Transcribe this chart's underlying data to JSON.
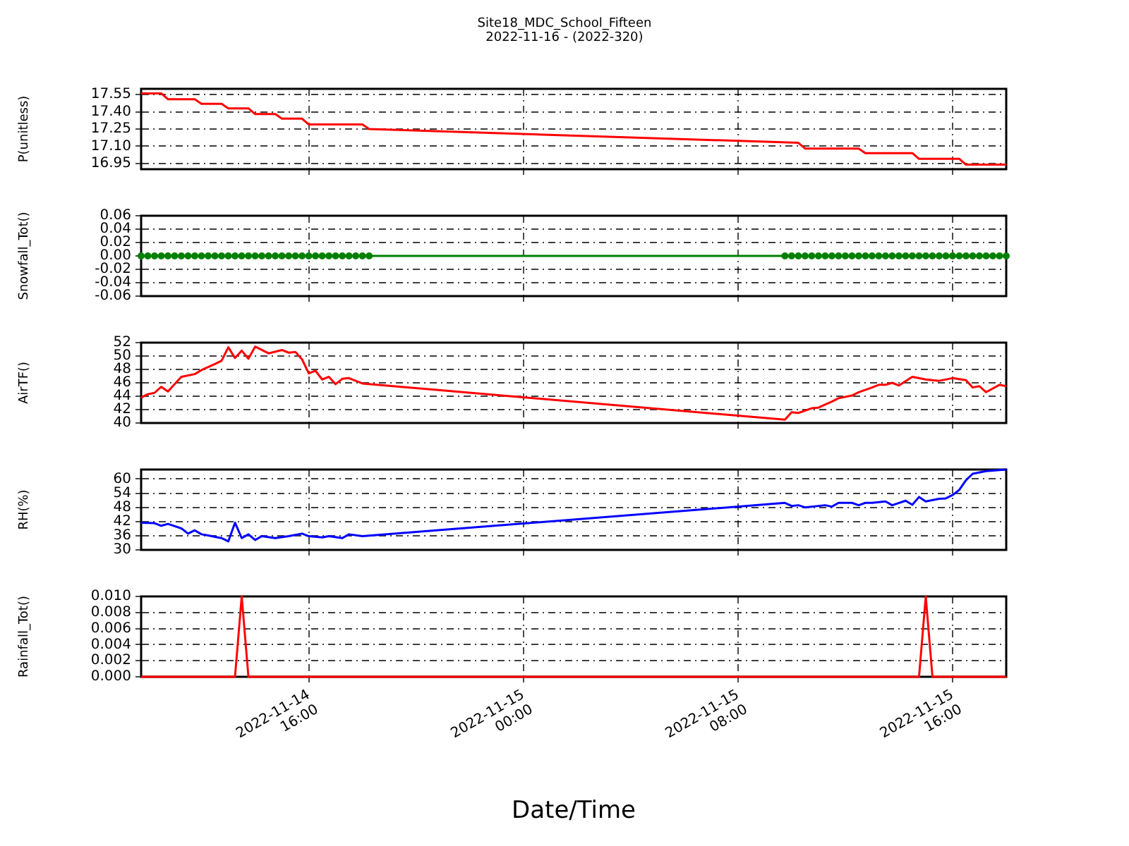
{
  "chart_data": [
    {
      "type": "line",
      "title": "Site18_MDC_School_Fifteen",
      "subtitle": "2022-11-16 - (2022-320)",
      "ylabel": "P(unitless)",
      "tick_labels": "y",
      "grid": true,
      "xlim": [
        "2022-11-14T09:45",
        "2022-11-15T18:00"
      ],
      "xticks": [
        {
          "value": "2022-11-14T16:00",
          "label": null
        },
        {
          "value": "2022-11-15T00:00",
          "label": null
        },
        {
          "value": "2022-11-15T08:00",
          "label": null
        },
        {
          "value": "2022-11-15T16:00",
          "label": null
        }
      ],
      "ylim": [
        16.9,
        17.6
      ],
      "yticks": [
        16.95,
        {
          "value": 17.1,
          "label": "17.10"
        },
        17.25,
        {
          "value": 17.4,
          "label": "17.40"
        },
        17.55
      ],
      "series": [
        {
          "color": "#ff0000",
          "x": [
            "2022-11-14T09:45",
            "2022-11-14T10:30",
            "2022-11-14T10:45",
            "2022-11-14T11:45",
            "2022-11-14T12:00",
            "2022-11-14T12:45",
            "2022-11-14T13:00",
            "2022-11-14T13:45",
            "2022-11-14T14:00",
            "2022-11-14T14:45",
            "2022-11-14T15:00",
            "2022-11-14T15:45",
            "2022-11-14T16:00",
            "2022-11-14T18:00",
            "2022-11-14T18:15",
            "2022-11-15T10:15",
            "2022-11-15T10:30",
            "2022-11-15T12:30",
            "2022-11-15T12:45",
            "2022-11-15T14:30",
            "2022-11-15T14:45",
            "2022-11-15T16:15",
            "2022-11-15T16:30",
            "2022-11-15T18:00"
          ],
          "values": [
            17.56,
            17.56,
            17.51,
            17.51,
            17.47,
            17.47,
            17.43,
            17.43,
            17.38,
            17.38,
            17.34,
            17.34,
            17.29,
            17.29,
            17.25,
            17.13,
            17.08,
            17.08,
            17.04,
            17.04,
            16.99,
            16.99,
            16.94,
            16.94
          ]
        }
      ]
    },
    {
      "type": "line",
      "ylabel": "Snowfall_Tot()",
      "tick_labels": "y",
      "grid": true,
      "marker": "circle",
      "xlim": [
        "2022-11-14T09:45",
        "2022-11-15T18:00"
      ],
      "xticks": [
        {
          "value": "2022-11-14T16:00",
          "label": null
        },
        {
          "value": "2022-11-15T00:00",
          "label": null
        },
        {
          "value": "2022-11-15T08:00",
          "label": null
        },
        {
          "value": "2022-11-15T16:00",
          "label": null
        }
      ],
      "ylim": [
        -0.06,
        0.06
      ],
      "yticks": [
        -0.06,
        -0.04,
        -0.02,
        {
          "value": 0,
          "label": "0.00"
        },
        0.02,
        0.04,
        0.06
      ],
      "series": [
        {
          "color": "#008000",
          "x": [
            "2022-11-14T09:45",
            "2022-11-14T10:00",
            "2022-11-14T10:15",
            "2022-11-14T10:30",
            "2022-11-14T10:45",
            "2022-11-14T11:00",
            "2022-11-14T11:15",
            "2022-11-14T11:30",
            "2022-11-14T11:45",
            "2022-11-14T12:00",
            "2022-11-14T12:15",
            "2022-11-14T12:30",
            "2022-11-14T12:45",
            "2022-11-14T13:00",
            "2022-11-14T13:15",
            "2022-11-14T13:30",
            "2022-11-14T13:45",
            "2022-11-14T14:00",
            "2022-11-14T14:15",
            "2022-11-14T14:30",
            "2022-11-14T14:45",
            "2022-11-14T15:00",
            "2022-11-14T15:15",
            "2022-11-14T15:30",
            "2022-11-14T15:45",
            "2022-11-14T16:00",
            "2022-11-14T16:15",
            "2022-11-14T16:30",
            "2022-11-14T16:45",
            "2022-11-14T17:00",
            "2022-11-14T17:15",
            "2022-11-14T17:30",
            "2022-11-14T17:45",
            "2022-11-14T18:00",
            "2022-11-14T18:15",
            "2022-11-15T09:45",
            "2022-11-15T10:00",
            "2022-11-15T10:15",
            "2022-11-15T10:30",
            "2022-11-15T10:45",
            "2022-11-15T11:00",
            "2022-11-15T11:15",
            "2022-11-15T11:30",
            "2022-11-15T11:45",
            "2022-11-15T12:00",
            "2022-11-15T12:15",
            "2022-11-15T12:30",
            "2022-11-15T12:45",
            "2022-11-15T13:00",
            "2022-11-15T13:15",
            "2022-11-15T13:30",
            "2022-11-15T13:45",
            "2022-11-15T14:00",
            "2022-11-15T14:15",
            "2022-11-15T14:30",
            "2022-11-15T14:45",
            "2022-11-15T15:00",
            "2022-11-15T15:15",
            "2022-11-15T15:30",
            "2022-11-15T15:45",
            "2022-11-15T16:00",
            "2022-11-15T16:15",
            "2022-11-15T16:30",
            "2022-11-15T16:45",
            "2022-11-15T17:00",
            "2022-11-15T17:15",
            "2022-11-15T17:30",
            "2022-11-15T17:45",
            "2022-11-15T18:00"
          ],
          "values": [
            0,
            0,
            0,
            0,
            0,
            0,
            0,
            0,
            0,
            0,
            0,
            0,
            0,
            0,
            0,
            0,
            0,
            0,
            0,
            0,
            0,
            0,
            0,
            0,
            0,
            0,
            0,
            0,
            0,
            0,
            0,
            0,
            0,
            0,
            0,
            0,
            0,
            0,
            0,
            0,
            0,
            0,
            0,
            0,
            0,
            0,
            0,
            0,
            0,
            0,
            0,
            0,
            0,
            0,
            0,
            0,
            0,
            0,
            0,
            0,
            0,
            0,
            0,
            0,
            0,
            0,
            0,
            0,
            0
          ]
        }
      ]
    },
    {
      "type": "line",
      "ylabel": "AirTF()",
      "tick_labels": "y",
      "grid": true,
      "xlim": [
        "2022-11-14T09:45",
        "2022-11-15T18:00"
      ],
      "xticks": [
        {
          "value": "2022-11-14T16:00",
          "label": null
        },
        {
          "value": "2022-11-15T00:00",
          "label": null
        },
        {
          "value": "2022-11-15T08:00",
          "label": null
        },
        {
          "value": "2022-11-15T16:00",
          "label": null
        }
      ],
      "ylim": [
        40,
        52
      ],
      "yticks": [
        40,
        42,
        44,
        46,
        48,
        50,
        52
      ],
      "series": [
        {
          "color": "#ff0000",
          "x": [
            "2022-11-14T09:45",
            "2022-11-14T10:00",
            "2022-11-14T10:15",
            "2022-11-14T10:30",
            "2022-11-14T10:45",
            "2022-11-14T11:15",
            "2022-11-14T11:45",
            "2022-11-14T12:00",
            "2022-11-14T12:30",
            "2022-11-14T12:45",
            "2022-11-14T13:00",
            "2022-11-14T13:15",
            "2022-11-14T13:30",
            "2022-11-14T13:45",
            "2022-11-14T14:00",
            "2022-11-14T14:30",
            "2022-11-14T15:00",
            "2022-11-14T15:15",
            "2022-11-14T15:30",
            "2022-11-14T15:45",
            "2022-11-14T16:00",
            "2022-11-14T16:15",
            "2022-11-14T16:30",
            "2022-11-14T16:45",
            "2022-11-14T17:00",
            "2022-11-14T17:15",
            "2022-11-14T17:30",
            "2022-11-14T18:00",
            "2022-11-15T09:45",
            "2022-11-15T10:00",
            "2022-11-15T10:15",
            "2022-11-15T10:45",
            "2022-11-15T11:00",
            "2022-11-15T11:30",
            "2022-11-15T11:45",
            "2022-11-15T12:15",
            "2022-11-15T12:30",
            "2022-11-15T13:00",
            "2022-11-15T13:15",
            "2022-11-15T13:30",
            "2022-11-15T13:45",
            "2022-11-15T14:00",
            "2022-11-15T14:30",
            "2022-11-15T15:00",
            "2022-11-15T15:30",
            "2022-11-15T16:00",
            "2022-11-15T16:30",
            "2022-11-15T16:45",
            "2022-11-15T17:00",
            "2022-11-15T17:15",
            "2022-11-15T17:45",
            "2022-11-15T18:00"
          ],
          "values": [
            43.8,
            44.3,
            44.5,
            45.4,
            44.7,
            46.9,
            47.3,
            47.9,
            48.8,
            49.3,
            51.3,
            49.7,
            50.8,
            49.6,
            51.4,
            50.4,
            50.9,
            50.5,
            50.6,
            49.5,
            47.4,
            47.8,
            46.5,
            46.9,
            45.8,
            46.6,
            46.7,
            45.9,
            40.5,
            41.6,
            41.5,
            42.2,
            42.3,
            43.2,
            43.7,
            44.1,
            44.6,
            45.3,
            45.7,
            45.7,
            46.0,
            45.6,
            46.9,
            46.5,
            46.3,
            46.7,
            46.4,
            45.3,
            45.5,
            44.6,
            45.7,
            45.5
          ]
        }
      ]
    },
    {
      "type": "line",
      "ylabel": "RH(%)",
      "tick_labels": "y",
      "grid": true,
      "xlim": [
        "2022-11-14T09:45",
        "2022-11-15T18:00"
      ],
      "xticks": [
        {
          "value": "2022-11-14T16:00",
          "label": null
        },
        {
          "value": "2022-11-15T00:00",
          "label": null
        },
        {
          "value": "2022-11-15T08:00",
          "label": null
        },
        {
          "value": "2022-11-15T16:00",
          "label": null
        }
      ],
      "ylim": [
        30,
        64
      ],
      "yticks": [
        30,
        36,
        42,
        48,
        54,
        60
      ],
      "series": [
        {
          "color": "#0000ff",
          "x": [
            "2022-11-14T09:45",
            "2022-11-14T10:15",
            "2022-11-14T10:30",
            "2022-11-14T10:45",
            "2022-11-14T11:15",
            "2022-11-14T11:30",
            "2022-11-14T11:45",
            "2022-11-14T12:00",
            "2022-11-14T12:15",
            "2022-11-14T12:30",
            "2022-11-14T12:45",
            "2022-11-14T13:00",
            "2022-11-14T13:15",
            "2022-11-14T13:30",
            "2022-11-14T13:45",
            "2022-11-14T14:00",
            "2022-11-14T14:15",
            "2022-11-14T14:45",
            "2022-11-14T15:15",
            "2022-11-14T15:45",
            "2022-11-14T16:00",
            "2022-11-14T16:30",
            "2022-11-14T16:45",
            "2022-11-14T17:15",
            "2022-11-14T17:30",
            "2022-11-14T18:00",
            "2022-11-15T09:45",
            "2022-11-15T10:00",
            "2022-11-15T10:15",
            "2022-11-15T10:30",
            "2022-11-15T11:15",
            "2022-11-15T11:30",
            "2022-11-15T11:45",
            "2022-11-15T12:15",
            "2022-11-15T12:30",
            "2022-11-15T12:45",
            "2022-11-15T13:00",
            "2022-11-15T13:30",
            "2022-11-15T13:45",
            "2022-11-15T14:15",
            "2022-11-15T14:30",
            "2022-11-15T14:45",
            "2022-11-15T15:00",
            "2022-11-15T15:30",
            "2022-11-15T15:45",
            "2022-11-15T16:00",
            "2022-11-15T16:15",
            "2022-11-15T16:30",
            "2022-11-15T16:45",
            "2022-11-15T17:15",
            "2022-11-15T17:45",
            "2022-11-15T18:00"
          ],
          "values": [
            41.5,
            41.3,
            40.2,
            41.0,
            39.1,
            36.9,
            38.3,
            36.6,
            36.1,
            35.5,
            35.0,
            33.6,
            41.5,
            35.0,
            36.6,
            34.2,
            35.8,
            35.0,
            35.8,
            36.9,
            35.8,
            35.3,
            35.8,
            35.0,
            36.6,
            35.8,
            49.9,
            48.6,
            48.9,
            48.0,
            48.9,
            48.3,
            49.9,
            49.9,
            48.9,
            49.9,
            49.9,
            50.5,
            48.9,
            50.8,
            49.1,
            52.4,
            50.5,
            51.6,
            51.8,
            53.2,
            55.4,
            59.5,
            62.2,
            63.3,
            63.8,
            64
          ]
        }
      ]
    },
    {
      "type": "line",
      "ylabel": "Rainfall_Tot()",
      "xlabel": "Date/Time",
      "grid": true,
      "xlim": [
        "2022-11-14T09:45",
        "2022-11-15T18:00"
      ],
      "xticks": [
        {
          "value": "2022-11-14T16:00",
          "label": "2022-11-14 16:00"
        },
        {
          "value": "2022-11-15T00:00",
          "label": "2022-11-15 00:00"
        },
        {
          "value": "2022-11-15T08:00",
          "label": "2022-11-15 08:00"
        },
        {
          "value": "2022-11-15T16:00",
          "label": "2022-11-15 16:00"
        }
      ],
      "ylim": [
        0,
        0.01
      ],
      "yticks": [
        {
          "value": 0,
          "label": "0.000"
        },
        {
          "value": 0.002,
          "label": "0.002"
        },
        {
          "value": 0.004,
          "label": "0.004"
        },
        {
          "value": 0.006,
          "label": "0.006"
        },
        {
          "value": 0.008,
          "label": "0.008"
        },
        {
          "value": 0.01,
          "label": "0.010"
        }
      ],
      "series": [
        {
          "color": "#ff0000",
          "x": [
            "2022-11-14T09:45",
            "2022-11-14T13:15",
            "2022-11-14T13:30",
            "2022-11-14T13:45",
            "2022-11-14T18:00",
            "2022-11-15T09:45",
            "2022-11-15T14:45",
            "2022-11-15T15:00",
            "2022-11-15T15:15",
            "2022-11-15T18:00"
          ],
          "values": [
            0,
            0,
            0.01,
            0,
            0,
            0,
            0,
            0.01,
            0,
            0
          ]
        }
      ]
    }
  ]
}
